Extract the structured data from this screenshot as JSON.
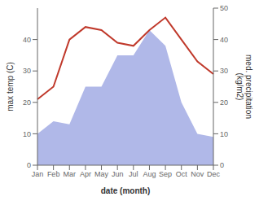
{
  "chart_data": {
    "type": "line",
    "categories": [
      "Jan",
      "Feb",
      "Mar",
      "Apr",
      "May",
      "Jun",
      "Jul",
      "Aug",
      "Sep",
      "Oct",
      "Nov",
      "Dec"
    ],
    "series": [
      {
        "type": "area",
        "color": "#b0b8e8",
        "axis": "y2",
        "values": [
          10,
          14,
          13,
          25,
          25,
          35,
          35,
          43,
          38,
          20,
          10,
          9
        ]
      },
      {
        "type": "line",
        "color": "#c0392b",
        "values": [
          21,
          25,
          40,
          44,
          43,
          39,
          38,
          43,
          47,
          40,
          33,
          29
        ]
      }
    ],
    "xlabel": "date (month)",
    "ylabel": "max temp (C)",
    "y2label": "med. precipitation\n(kg/m2)",
    "ylim": [
      0,
      50
    ],
    "yticks": [
      0,
      10,
      20,
      30,
      40
    ],
    "y2lim": [
      0,
      50
    ],
    "y2ticks": [
      0,
      10,
      20,
      30,
      40,
      50
    ],
    "grid": false
  }
}
